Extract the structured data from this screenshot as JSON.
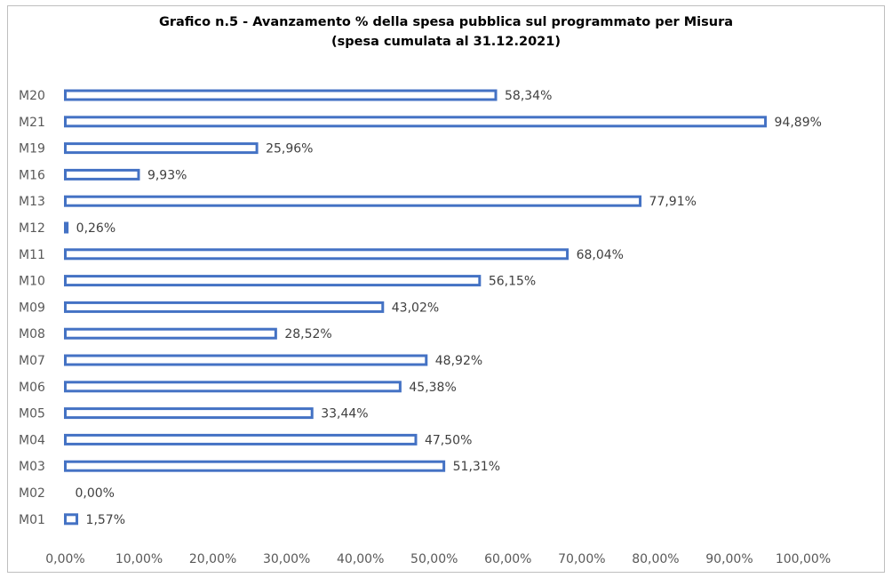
{
  "chart_data": {
    "type": "bar",
    "orientation": "horizontal",
    "title_line1": "Grafico n.5 - Avanzamento % della spesa pubblica sul programmato per Misura",
    "title_line2": "(spesa cumulata al 31.12.2021)",
    "categories": [
      "M20",
      "M21",
      "M19",
      "M16",
      "M13",
      "M12",
      "M11",
      "M10",
      "M09",
      "M08",
      "M07",
      "M06",
      "M05",
      "M04",
      "M03",
      "M02",
      "M01"
    ],
    "values": [
      58.34,
      94.89,
      25.96,
      9.93,
      77.91,
      0.26,
      68.04,
      56.15,
      43.02,
      28.52,
      48.92,
      45.38,
      33.44,
      47.5,
      51.31,
      0.0,
      1.57
    ],
    "value_labels": [
      "58,34%",
      "94,89%",
      "25,96%",
      "9,93%",
      "77,91%",
      "0,26%",
      "68,04%",
      "56,15%",
      "43,02%",
      "28,52%",
      "48,92%",
      "45,38%",
      "33,44%",
      "47,50%",
      "51,31%",
      "0,00%",
      "1,57%"
    ],
    "xlim": [
      0,
      100
    ],
    "x_ticks": [
      "0,00%",
      "10,00%",
      "20,00%",
      "30,00%",
      "40,00%",
      "50,00%",
      "60,00%",
      "70,00%",
      "80,00%",
      "90,00%",
      "100,00%"
    ],
    "xlabel": "",
    "ylabel": "",
    "grid": false,
    "bar_style": "outlined",
    "bar_color": "#4472c4"
  }
}
